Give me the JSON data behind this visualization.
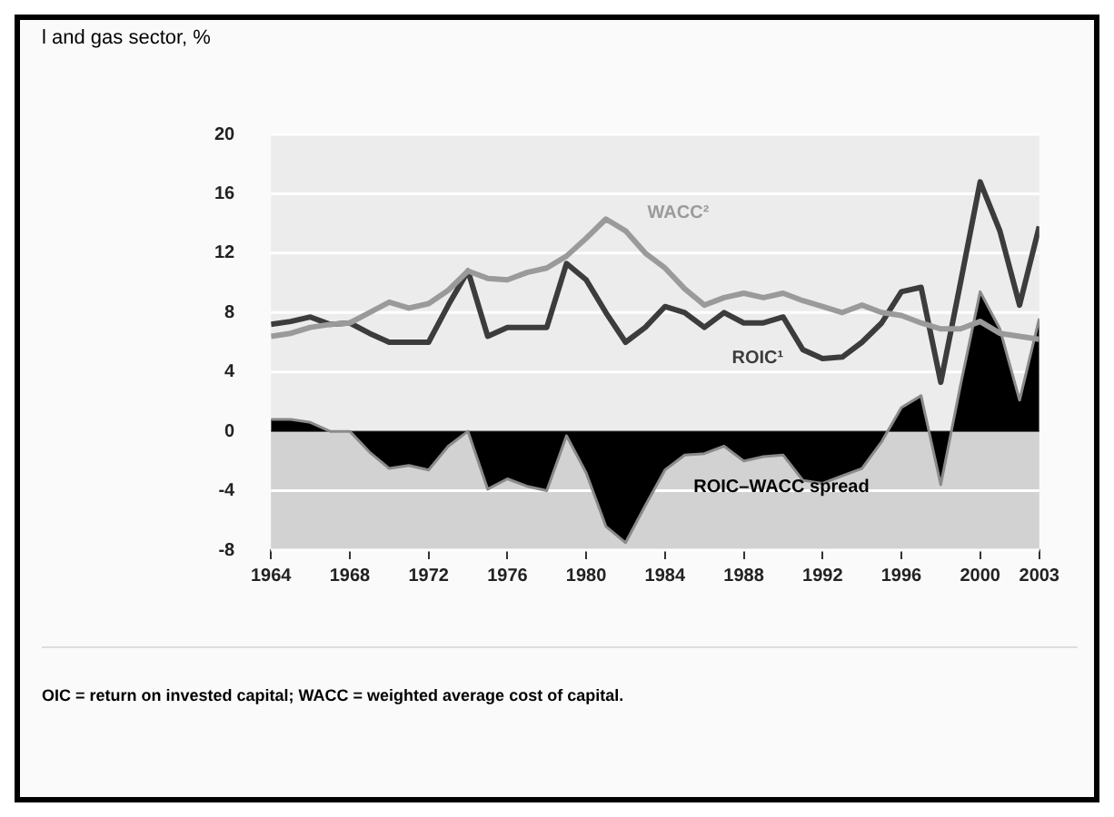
{
  "chart_data": {
    "type": "line",
    "title": "l and gas sector, %",
    "x": [
      1964,
      1965,
      1966,
      1967,
      1968,
      1969,
      1970,
      1971,
      1972,
      1973,
      1974,
      1975,
      1976,
      1977,
      1978,
      1979,
      1980,
      1981,
      1982,
      1983,
      1984,
      1985,
      1986,
      1987,
      1988,
      1989,
      1990,
      1991,
      1992,
      1993,
      1994,
      1995,
      1996,
      1997,
      1998,
      1999,
      2000,
      2001,
      2002,
      2003
    ],
    "series": [
      {
        "name": "ROIC–WACC spread",
        "type": "area",
        "color": "#000000",
        "values": [
          0.8,
          0.8,
          0.6,
          0,
          0,
          -1.4,
          -2.5,
          -2.3,
          -2.6,
          -1,
          0,
          -3.9,
          -3.2,
          -3.7,
          -4,
          -0.3,
          -2.8,
          -6.4,
          -7.5,
          -5,
          -2.6,
          -1.6,
          -1.5,
          -1,
          -2,
          -1.7,
          -1.6,
          -3.3,
          -3.5,
          -3,
          -2.5,
          -0.7,
          1.6,
          2.4,
          -3.6,
          3.1,
          9.4,
          6.9,
          2.1,
          7.6
        ]
      },
      {
        "name": "WACC²",
        "type": "line",
        "color": "#9a9a9a",
        "values": [
          6.4,
          6.6,
          7,
          7.2,
          7.3,
          8,
          8.7,
          8.3,
          8.6,
          9.5,
          10.8,
          10.3,
          10.2,
          10.7,
          11,
          11.8,
          13,
          14.3,
          13.5,
          12,
          11,
          9.6,
          8.5,
          9,
          9.3,
          9,
          9.3,
          8.8,
          8.4,
          8,
          8.5,
          8,
          7.8,
          7.3,
          6.9,
          6.9,
          7.4,
          6.6,
          6.4,
          6.2
        ]
      },
      {
        "name": "ROIC¹",
        "type": "line",
        "color": "#3c3c3c",
        "values": [
          7.2,
          7.4,
          7.7,
          7.2,
          7.3,
          6.6,
          6,
          6,
          6,
          8.5,
          10.8,
          6.4,
          7,
          7,
          7,
          11.3,
          10.2,
          8,
          6,
          7,
          8.4,
          8,
          7,
          8,
          7.3,
          7.3,
          7.7,
          5.5,
          4.9,
          5,
          6,
          7.3,
          9.4,
          9.7,
          3.3,
          10,
          16.8,
          13.5,
          8.5,
          13.8
        ]
      }
    ],
    "xlim": [
      1964,
      2003
    ],
    "xticks": [
      1964,
      1968,
      1972,
      1976,
      1980,
      1984,
      1988,
      1992,
      1996,
      2000,
      2003
    ],
    "ylim": [
      -8,
      20
    ],
    "yticks": [
      -8,
      -4,
      0,
      4,
      8,
      12,
      16,
      20
    ],
    "bands": [
      {
        "axis": "y",
        "from": -8,
        "to": 0,
        "color": "#d2d2d2"
      }
    ],
    "grid": "y",
    "legend": false,
    "marker": "none",
    "line_style": "solid",
    "annotations": [
      "OIC = return on invested capital; WACC = weighted average cost of capital."
    ]
  }
}
